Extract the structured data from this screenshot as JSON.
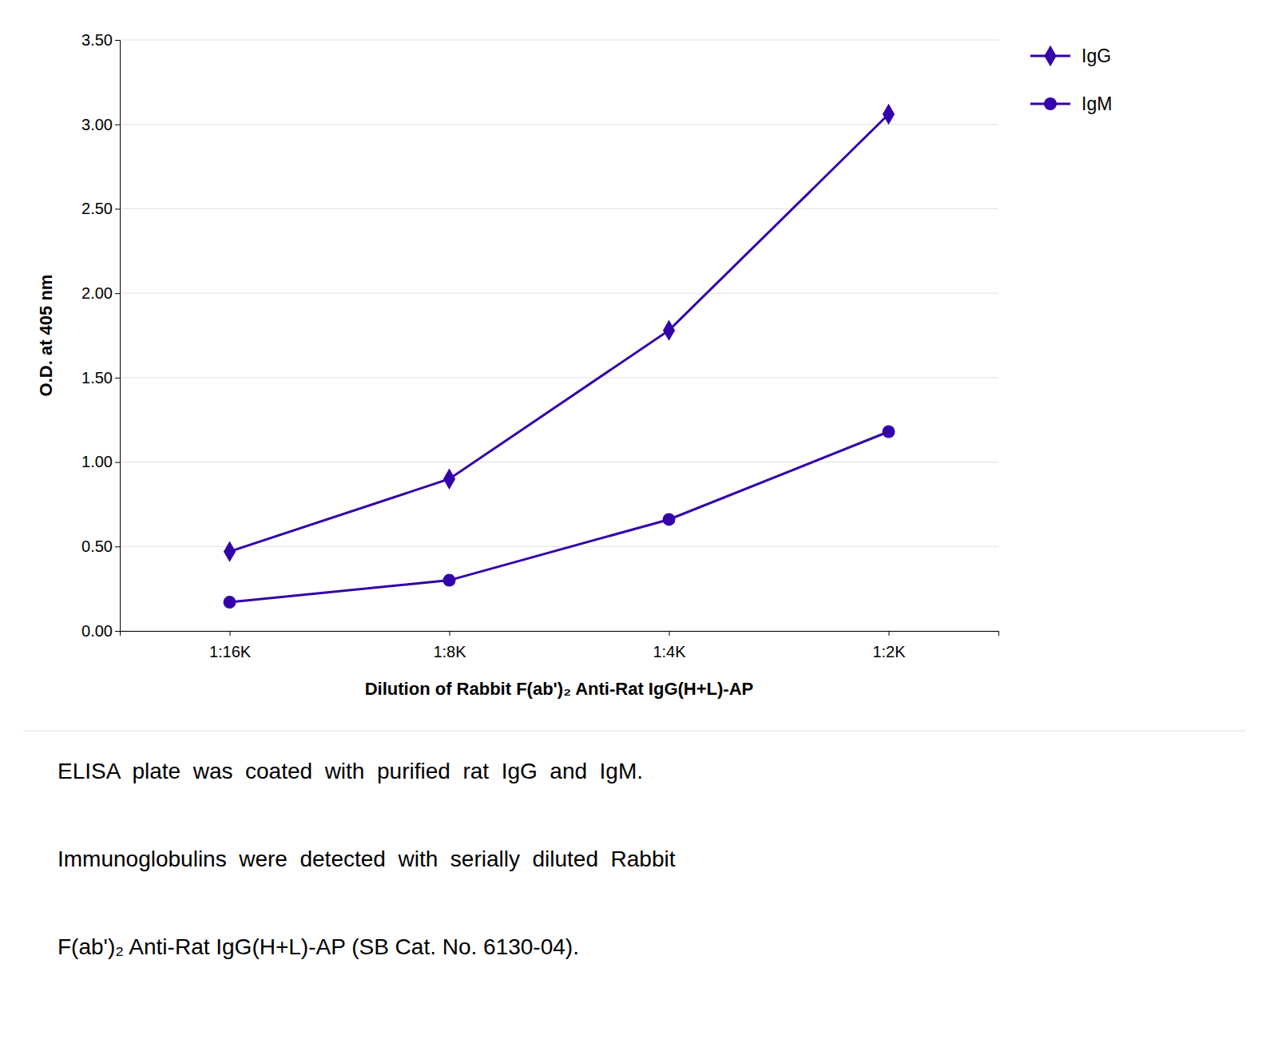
{
  "chart_data": {
    "type": "line",
    "categories": [
      "1:16K",
      "1:8K",
      "1:4K",
      "1:2K"
    ],
    "series": [
      {
        "name": "IgG",
        "color": "#3300aa",
        "marker": "diamond",
        "values": [
          0.47,
          0.9,
          1.78,
          3.06
        ]
      },
      {
        "name": "IgM",
        "color": "#3300aa",
        "marker": "circle",
        "values": [
          0.17,
          0.3,
          0.66,
          1.18
        ]
      }
    ],
    "x_label": "Dilution of Rabbit F(ab')₂ Anti-Rat IgG(H+L)-AP",
    "y_label": "O.D. at 405 nm",
    "ylim": [
      0.0,
      3.5
    ],
    "yticks": [
      {
        "value": 0,
        "label": "0.00"
      },
      {
        "value": 0.5,
        "label": "0.50"
      },
      {
        "value": 1,
        "label": "1.00"
      },
      {
        "value": 1.5,
        "label": "1.50"
      },
      {
        "value": 2,
        "label": "2.00"
      },
      {
        "value": 2.5,
        "label": "2.50"
      },
      {
        "value": 3,
        "label": "3.00"
      },
      {
        "value": 3.5,
        "label": "3.50"
      }
    ],
    "grid": true,
    "legend": "right",
    "annotations": [
      "ELISA  plate  was  coated  with  purified  rat  IgG  and  IgM.",
      "Immunoglobulins  were  detected  with  serially  diluted  Rabbit",
      "F(ab')₂ Anti-Rat IgG(H+L)-AP (SB Cat. No. 6130-04)."
    ]
  }
}
